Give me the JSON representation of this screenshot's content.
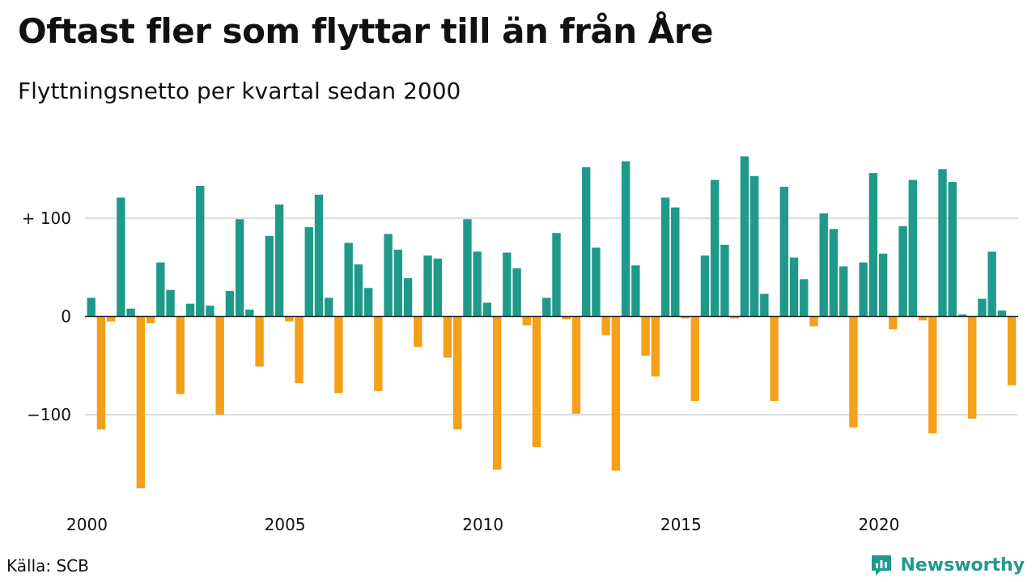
{
  "title": "Oftast fler som flyttar till än från Åre",
  "subtitle": "Flyttningsnetto per kvartal sedan 2000",
  "source": "Källa: SCB",
  "brand": {
    "name": "Newsworthy",
    "icon": "newsworthy-logo-icon"
  },
  "colors": {
    "positive": "#1f9a8a",
    "negative": "#f5a01a",
    "grid": "#dddddd",
    "zero": "#222222"
  },
  "chart_data": {
    "type": "bar",
    "x_start_year": 2000,
    "quarters_per_year": 4,
    "x_ticks": [
      2000,
      2005,
      2010,
      2015,
      2020
    ],
    "y_ticks": [
      {
        "value": 100,
        "label": "+ 100"
      },
      {
        "value": 0,
        "label": "0"
      },
      {
        "value": -100,
        "label": "−100"
      }
    ],
    "ylim": [
      -180,
      165
    ],
    "grid": true,
    "values": [
      19,
      -115,
      -5,
      121,
      8,
      -175,
      -7,
      55,
      27,
      -79,
      13,
      133,
      11,
      -100,
      26,
      99,
      7,
      -51,
      82,
      114,
      -5,
      -68,
      91,
      124,
      19,
      -78,
      75,
      53,
      29,
      -76,
      84,
      68,
      39,
      -31,
      62,
      59,
      -42,
      -115,
      99,
      66,
      14,
      -156,
      65,
      49,
      -9,
      -133,
      19,
      85,
      -3,
      -99,
      152,
      70,
      -19,
      -157,
      158,
      52,
      -40,
      -61,
      121,
      111,
      -2,
      -86,
      62,
      139,
      73,
      -2,
      163,
      143,
      23,
      -86,
      132,
      60,
      38,
      -10,
      105,
      89,
      51,
      -113,
      55,
      146,
      64,
      -13,
      92,
      139,
      -4,
      -119,
      150,
      137,
      2,
      -104,
      18,
      66,
      6,
      -70
    ]
  }
}
